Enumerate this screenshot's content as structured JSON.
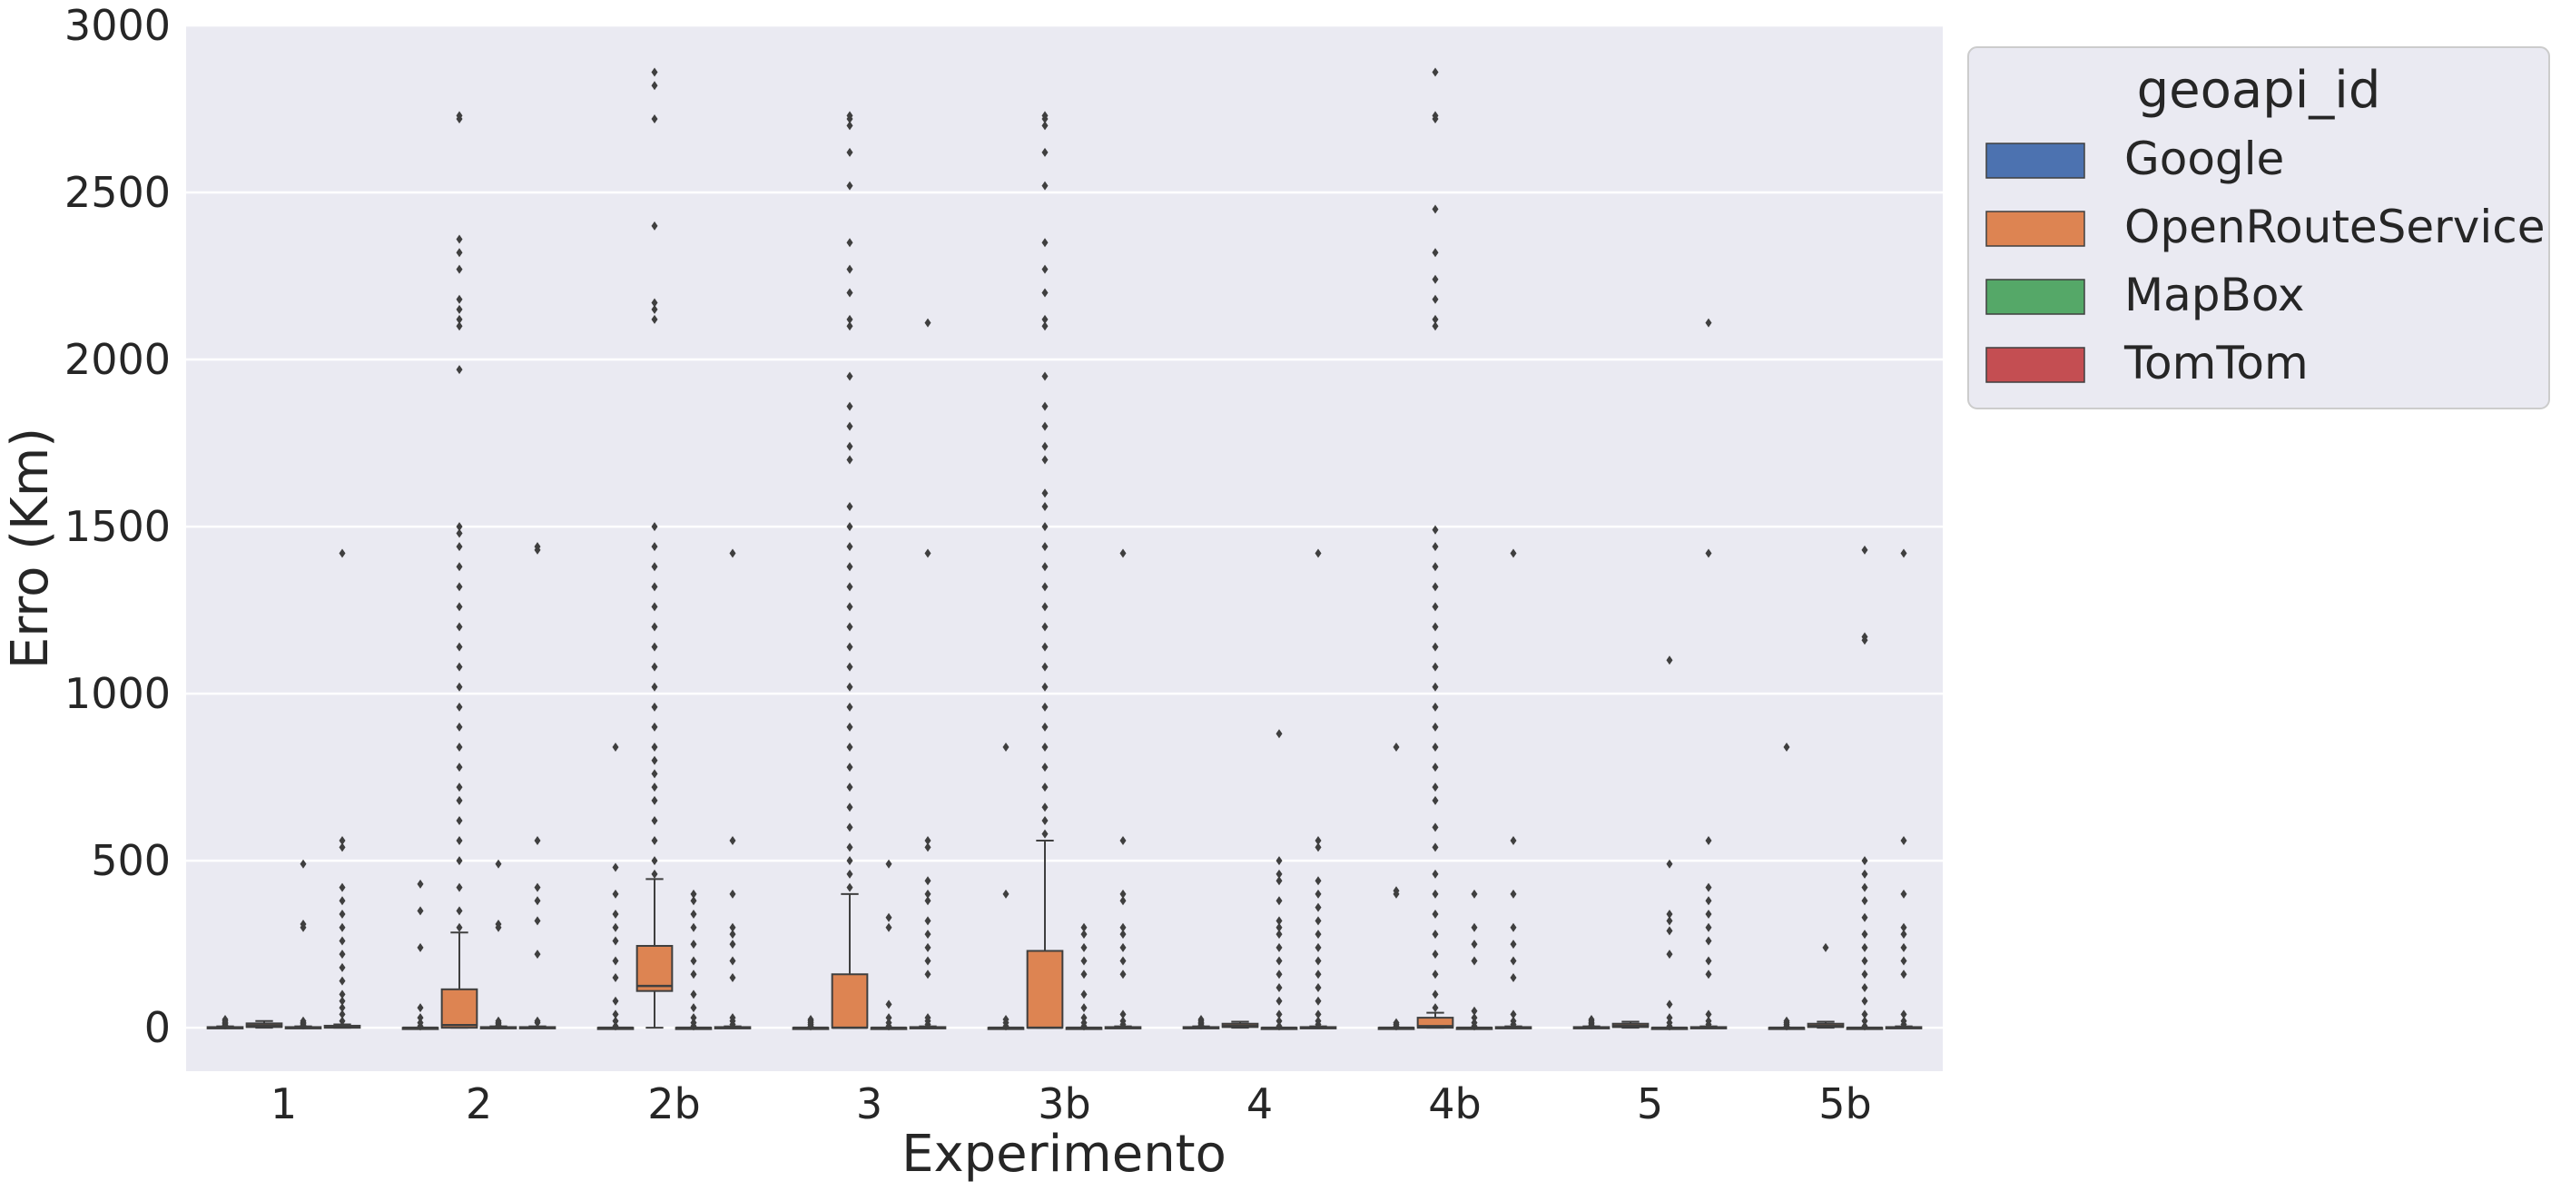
{
  "chart_data": {
    "type": "box",
    "xlabel": "Experimento",
    "ylabel": "Erro (Km)",
    "categories": [
      "1",
      "2",
      "2b",
      "3",
      "3b",
      "4",
      "4b",
      "5",
      "5b"
    ],
    "ylim": [
      -130,
      3000
    ],
    "yticks": [
      0,
      500,
      1000,
      1500,
      2000,
      2500,
      3000
    ],
    "grid": true,
    "legend": {
      "title": "geoapi_id",
      "placement": "outside-top-right"
    },
    "series": [
      {
        "name": "Google",
        "color": "#4c72b0",
        "boxes": [
          {
            "q1": 0,
            "median": 0,
            "q3": 2,
            "whisker_low": 0,
            "whisker_high": 4,
            "outliers": [
              8,
              12,
              15,
              20,
              25
            ]
          },
          {
            "q1": 0,
            "median": 0,
            "q3": 0,
            "whisker_low": 0,
            "whisker_high": 0,
            "outliers": [
              5,
              15,
              30,
              60,
              240,
              350,
              430
            ]
          },
          {
            "q1": 0,
            "median": 0,
            "q3": 0,
            "whisker_low": 0,
            "whisker_high": 0,
            "outliers": [
              5,
              20,
              40,
              80,
              150,
              200,
              260,
              300,
              340,
              400,
              480,
              840
            ]
          },
          {
            "q1": 0,
            "median": 0,
            "q3": 0,
            "whisker_low": 0,
            "whisker_high": 0,
            "outliers": [
              5,
              10,
              15,
              20,
              25
            ]
          },
          {
            "q1": 0,
            "median": 0,
            "q3": 0,
            "whisker_low": 0,
            "whisker_high": 0,
            "outliers": [
              5,
              15,
              25,
              400,
              840
            ]
          },
          {
            "q1": 0,
            "median": 0,
            "q3": 2,
            "whisker_low": 0,
            "whisker_high": 4,
            "outliers": [
              8,
              12,
              15,
              20,
              25
            ]
          },
          {
            "q1": 0,
            "median": 0,
            "q3": 0,
            "whisker_low": 0,
            "whisker_high": 0,
            "outliers": [
              5,
              10,
              15,
              400,
              410,
              840
            ]
          },
          {
            "q1": 0,
            "median": 0,
            "q3": 2,
            "whisker_low": 0,
            "whisker_high": 4,
            "outliers": [
              8,
              12,
              15,
              20,
              25
            ]
          },
          {
            "q1": 0,
            "median": 0,
            "q3": 0,
            "whisker_low": 0,
            "whisker_high": 0,
            "outliers": [
              5,
              10,
              15,
              20,
              840
            ]
          }
        ]
      },
      {
        "name": "OpenRouteService",
        "color": "#dd8452",
        "boxes": [
          {
            "q1": 2,
            "median": 7,
            "q3": 13,
            "whisker_low": 0,
            "whisker_high": 20,
            "outliers": []
          },
          {
            "q1": 0,
            "median": 8,
            "q3": 115,
            "whisker_low": 0,
            "whisker_high": 285,
            "outliers": [
              300,
              350,
              420,
              500,
              560,
              620,
              680,
              720,
              780,
              840,
              900,
              960,
              1020,
              1080,
              1140,
              1200,
              1260,
              1320,
              1380,
              1440,
              1480,
              1500,
              1970,
              2100,
              2120,
              2150,
              2180,
              2270,
              2320,
              2360,
              2720,
              2730
            ]
          },
          {
            "q1": 110,
            "median": 125,
            "q3": 245,
            "whisker_low": 0,
            "whisker_high": 445,
            "outliers": [
              460,
              500,
              560,
              620,
              680,
              720,
              760,
              800,
              840,
              900,
              960,
              1020,
              1080,
              1140,
              1200,
              1260,
              1320,
              1380,
              1440,
              1500,
              2120,
              2150,
              2170,
              2400,
              2720,
              2820,
              2860
            ]
          },
          {
            "q1": 0,
            "median": 0,
            "q3": 160,
            "whisker_low": 0,
            "whisker_high": 400,
            "outliers": [
              420,
              460,
              500,
              540,
              600,
              660,
              720,
              780,
              840,
              900,
              960,
              1020,
              1080,
              1140,
              1200,
              1260,
              1320,
              1380,
              1440,
              1500,
              1560,
              1700,
              1740,
              1800,
              1860,
              1950,
              2100,
              2120,
              2200,
              2270,
              2350,
              2520,
              2620,
              2700,
              2720,
              2730
            ]
          },
          {
            "q1": 0,
            "median": 0,
            "q3": 230,
            "whisker_low": 0,
            "whisker_high": 560,
            "outliers": [
              580,
              620,
              660,
              720,
              780,
              840,
              900,
              960,
              1020,
              1080,
              1140,
              1200,
              1260,
              1320,
              1380,
              1440,
              1500,
              1560,
              1600,
              1700,
              1740,
              1800,
              1860,
              1950,
              2100,
              2120,
              2200,
              2270,
              2350,
              2520,
              2620,
              2700,
              2720,
              2730
            ]
          },
          {
            "q1": 2,
            "median": 6,
            "q3": 12,
            "whisker_low": 0,
            "whisker_high": 18,
            "outliers": []
          },
          {
            "q1": 0,
            "median": 5,
            "q3": 30,
            "whisker_low": 0,
            "whisker_high": 45,
            "outliers": [
              60,
              100,
              160,
              220,
              280,
              340,
              400,
              460,
              540,
              600,
              680,
              720,
              780,
              840,
              900,
              960,
              1020,
              1080,
              1140,
              1200,
              1260,
              1320,
              1380,
              1440,
              1490,
              2100,
              2120,
              2180,
              2240,
              2320,
              2450,
              2720,
              2730,
              2860
            ]
          },
          {
            "q1": 2,
            "median": 6,
            "q3": 12,
            "whisker_low": 0,
            "whisker_high": 18,
            "outliers": []
          },
          {
            "q1": 2,
            "median": 6,
            "q3": 12,
            "whisker_low": 0,
            "whisker_high": 18,
            "outliers": [
              240
            ]
          }
        ]
      },
      {
        "name": "MapBox",
        "color": "#55a868",
        "boxes": [
          {
            "q1": 0,
            "median": 0,
            "q3": 2,
            "whisker_low": 0,
            "whisker_high": 4,
            "outliers": [
              8,
              12,
              15,
              20,
              300,
              310,
              490
            ]
          },
          {
            "q1": 0,
            "median": 0,
            "q3": 2,
            "whisker_low": 0,
            "whisker_high": 4,
            "outliers": [
              8,
              12,
              15,
              20,
              300,
              310,
              490
            ]
          },
          {
            "q1": 0,
            "median": 0,
            "q3": 0,
            "whisker_low": 0,
            "whisker_high": 0,
            "outliers": [
              5,
              15,
              30,
              60,
              100,
              160,
              200,
              250,
              300,
              340,
              380,
              400
            ]
          },
          {
            "q1": 0,
            "median": 0,
            "q3": 0,
            "whisker_low": 0,
            "whisker_high": 0,
            "outliers": [
              5,
              15,
              30,
              70,
              300,
              330,
              490
            ]
          },
          {
            "q1": 0,
            "median": 0,
            "q3": 0,
            "whisker_low": 0,
            "whisker_high": 0,
            "outliers": [
              5,
              15,
              30,
              60,
              100,
              160,
              200,
              240,
              280,
              300
            ]
          },
          {
            "q1": 0,
            "median": 0,
            "q3": 0,
            "whisker_low": 0,
            "whisker_high": 0,
            "outliers": [
              5,
              20,
              40,
              80,
              120,
              160,
              200,
              240,
              280,
              300,
              320,
              380,
              440,
              460,
              500,
              880
            ]
          },
          {
            "q1": 0,
            "median": 0,
            "q3": 0,
            "whisker_low": 0,
            "whisker_high": 0,
            "outliers": [
              5,
              15,
              30,
              50,
              200,
              250,
              300,
              400
            ]
          },
          {
            "q1": 0,
            "median": 0,
            "q3": 0,
            "whisker_low": 0,
            "whisker_high": 0,
            "outliers": [
              5,
              15,
              30,
              70,
              220,
              290,
              320,
              340,
              490,
              1100
            ]
          },
          {
            "q1": 0,
            "median": 0,
            "q3": 0,
            "whisker_low": 0,
            "whisker_high": 0,
            "outliers": [
              5,
              20,
              40,
              80,
              120,
              160,
              200,
              240,
              280,
              330,
              380,
              420,
              460,
              500,
              1160,
              1170,
              1430
            ]
          }
        ]
      },
      {
        "name": "TomTom",
        "color": "#c44e52",
        "boxes": [
          {
            "q1": 0,
            "median": 2,
            "q3": 6,
            "whisker_low": 0,
            "whisker_high": 10,
            "outliers": [
              20,
              40,
              60,
              80,
              100,
              140,
              180,
              220,
              260,
              300,
              340,
              380,
              420,
              540,
              560,
              1420
            ]
          },
          {
            "q1": 0,
            "median": 0,
            "q3": 2,
            "whisker_low": 0,
            "whisker_high": 4,
            "outliers": [
              15,
              20,
              220,
              320,
              380,
              420,
              560,
              1430,
              1440
            ]
          },
          {
            "q1": 0,
            "median": 0,
            "q3": 2,
            "whisker_low": 0,
            "whisker_high": 4,
            "outliers": [
              10,
              20,
              30,
              150,
              200,
              250,
              280,
              300,
              400,
              560,
              1420
            ]
          },
          {
            "q1": 0,
            "median": 0,
            "q3": 2,
            "whisker_low": 0,
            "whisker_high": 4,
            "outliers": [
              10,
              20,
              30,
              160,
              200,
              240,
              280,
              320,
              380,
              400,
              440,
              540,
              560,
              1420,
              2110
            ]
          },
          {
            "q1": 0,
            "median": 0,
            "q3": 2,
            "whisker_low": 0,
            "whisker_high": 4,
            "outliers": [
              10,
              20,
              40,
              160,
              200,
              240,
              280,
              300,
              380,
              400,
              560,
              1420
            ]
          },
          {
            "q1": 0,
            "median": 0,
            "q3": 2,
            "whisker_low": 0,
            "whisker_high": 4,
            "outliers": [
              10,
              20,
              40,
              80,
              120,
              160,
              200,
              240,
              280,
              320,
              360,
              400,
              440,
              540,
              560,
              1420
            ]
          },
          {
            "q1": 0,
            "median": 0,
            "q3": 2,
            "whisker_low": 0,
            "whisker_high": 4,
            "outliers": [
              10,
              20,
              40,
              150,
              200,
              250,
              300,
              400,
              560,
              1420
            ]
          },
          {
            "q1": 0,
            "median": 0,
            "q3": 2,
            "whisker_low": 0,
            "whisker_high": 4,
            "outliers": [
              10,
              20,
              40,
              160,
              200,
              260,
              300,
              340,
              380,
              420,
              560,
              1420,
              2110
            ]
          },
          {
            "q1": 0,
            "median": 0,
            "q3": 2,
            "whisker_low": 0,
            "whisker_high": 4,
            "outliers": [
              10,
              20,
              40,
              160,
              200,
              240,
              280,
              300,
              400,
              560,
              1420
            ]
          }
        ]
      }
    ]
  }
}
